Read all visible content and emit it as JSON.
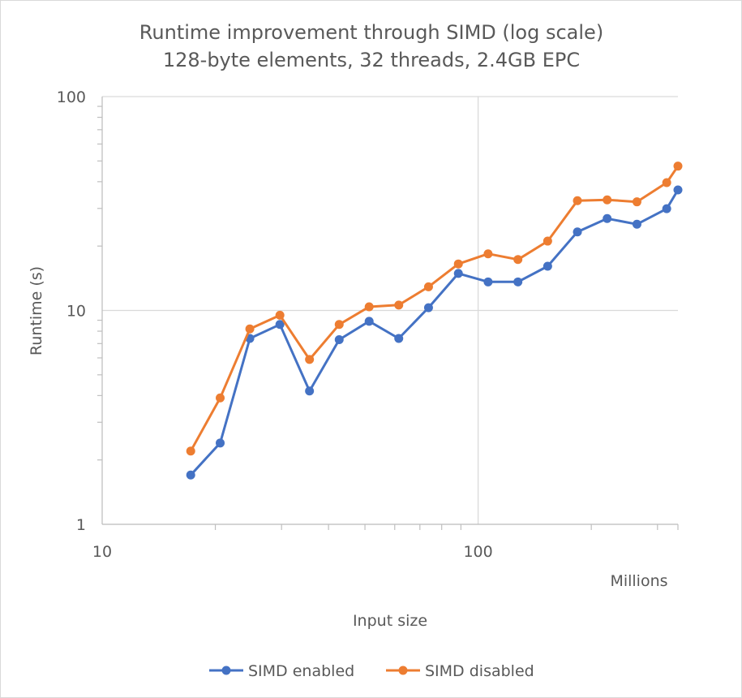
{
  "chart_data": {
    "type": "line",
    "title": "Runtime improvement through SIMD (log scale)",
    "subtitle": "128-byte elements, 32 threads, 2.4GB EPC",
    "xlabel": "Input size",
    "x_unit_label": "Millions",
    "ylabel": "Runtime (s)",
    "x_scale": "log",
    "y_scale": "log",
    "xlim": [
      10,
      340
    ],
    "ylim": [
      1,
      100
    ],
    "x_tick_labels": [
      "10",
      "100"
    ],
    "y_tick_labels": [
      "1",
      "10",
      "100"
    ],
    "grid": true,
    "legend": "bottom",
    "x": [
      17.2,
      20.6,
      24.7,
      29.7,
      35.6,
      42.7,
      51.3,
      61.5,
      73.8,
      88.6,
      106.3,
      127.6,
      153.1,
      183.7,
      220.4,
      264.5,
      317.4,
      340
    ],
    "series": [
      {
        "name": "SIMD enabled",
        "color": "#4472c4",
        "values": [
          1.7,
          2.4,
          7.4,
          8.6,
          4.2,
          7.3,
          8.9,
          7.4,
          10.3,
          14.9,
          13.6,
          13.6,
          16.1,
          23.3,
          26.9,
          25.3,
          29.9,
          36.6
        ]
      },
      {
        "name": "SIMD disabled",
        "color": "#ed7d31",
        "values": [
          2.2,
          3.9,
          8.2,
          9.5,
          5.9,
          8.6,
          10.4,
          10.6,
          12.9,
          16.5,
          18.4,
          17.3,
          21.1,
          32.6,
          32.9,
          32.2,
          39.6,
          47.3
        ]
      }
    ]
  }
}
